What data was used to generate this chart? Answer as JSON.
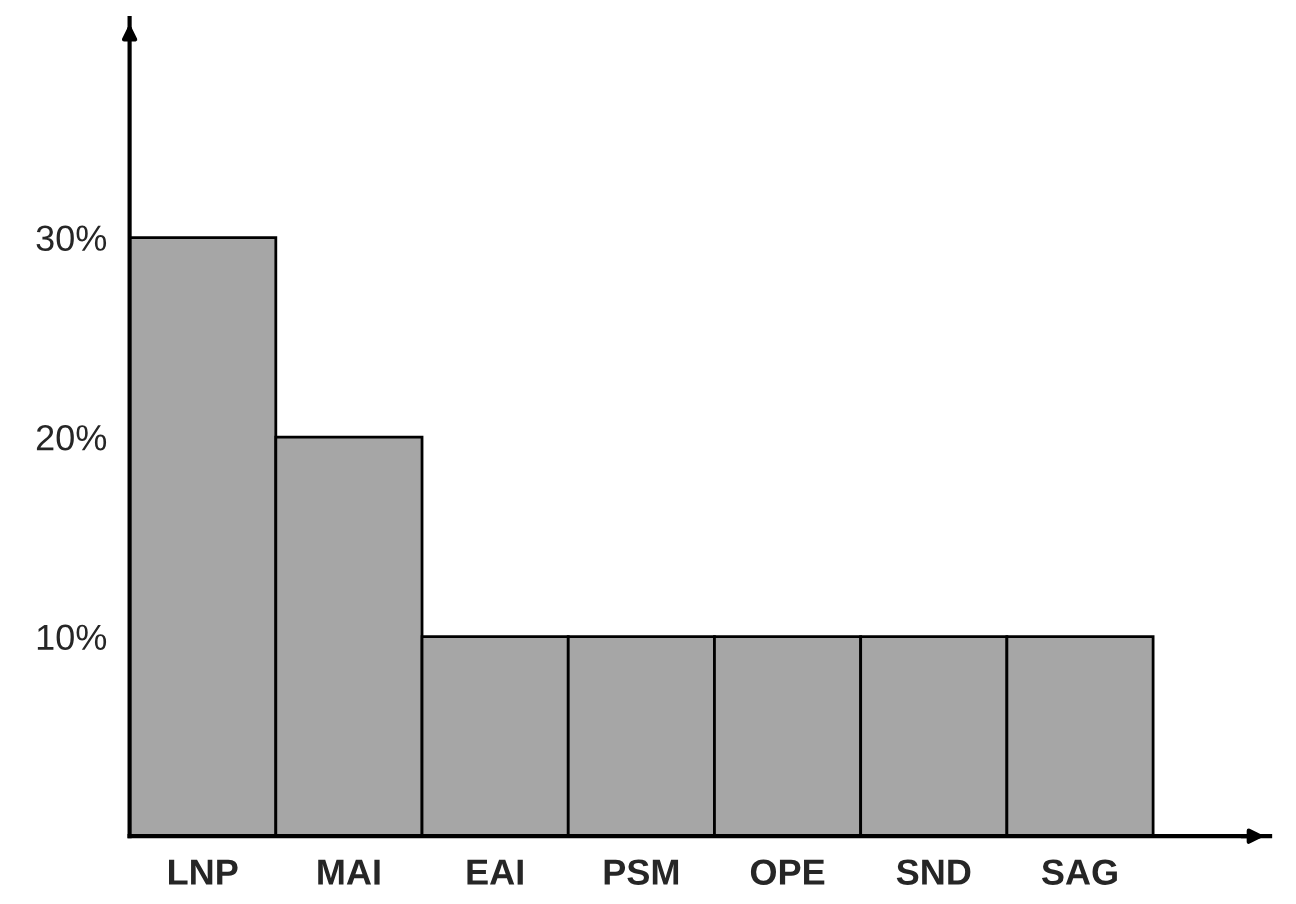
{
  "chart_data": {
    "type": "bar",
    "categories": [
      "LNP",
      "MAI",
      "EAI",
      "PSM",
      "OPE",
      "SND",
      "SAG"
    ],
    "values": [
      30,
      20,
      10,
      10,
      10,
      10,
      10
    ],
    "color": "#a6a6a6",
    "ylim": [
      0,
      41
    ],
    "yticks": [
      {
        "value": 10,
        "label": "10%"
      },
      {
        "value": 20,
        "label": "20%"
      },
      {
        "value": 30,
        "label": "30%"
      }
    ],
    "grid": false
  }
}
